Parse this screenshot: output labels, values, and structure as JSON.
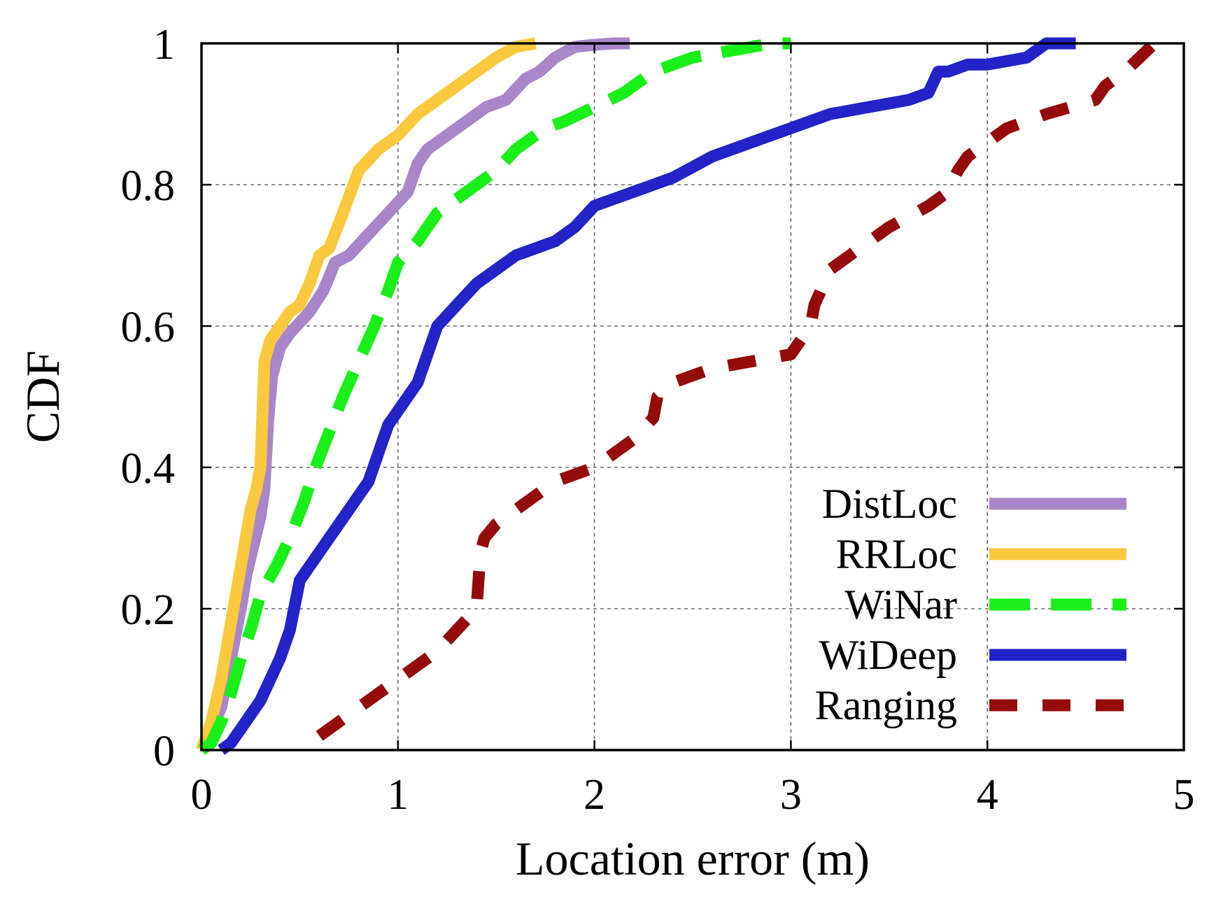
{
  "chart_data": {
    "type": "line",
    "title": "",
    "xlabel": "Location error (m)",
    "ylabel": "CDF",
    "xlim": [
      0,
      5
    ],
    "ylim": [
      0,
      1
    ],
    "xticks": [
      0,
      1,
      2,
      3,
      4,
      5
    ],
    "yticks": [
      0,
      0.2,
      0.4,
      0.6,
      0.8,
      1
    ],
    "xtick_labels": [
      "0",
      "1",
      "2",
      "3",
      "4",
      "5"
    ],
    "ytick_labels": [
      "0",
      "0.2",
      "0.4",
      "0.6",
      "0.8",
      "1"
    ],
    "grid": true,
    "legend_position": "bottom-right",
    "series": [
      {
        "name": "DistLoc",
        "color": "#a986c9",
        "style": "solid",
        "x": [
          0.0,
          0.1,
          0.15,
          0.2,
          0.23,
          0.3,
          0.32,
          0.34,
          0.36,
          0.4,
          0.45,
          0.55,
          0.62,
          0.68,
          0.75,
          0.85,
          0.95,
          1.05,
          1.1,
          1.15,
          1.25,
          1.35,
          1.45,
          1.55,
          1.65,
          1.72,
          1.8,
          1.9,
          2.0,
          2.1,
          2.18
        ],
        "y": [
          0.0,
          0.06,
          0.13,
          0.2,
          0.25,
          0.33,
          0.37,
          0.47,
          0.53,
          0.57,
          0.59,
          0.62,
          0.65,
          0.69,
          0.7,
          0.73,
          0.76,
          0.79,
          0.83,
          0.85,
          0.87,
          0.89,
          0.91,
          0.92,
          0.95,
          0.96,
          0.98,
          0.995,
          0.998,
          1.0,
          1.0
        ]
      },
      {
        "name": "RRLoc",
        "color": "#fbc93d",
        "style": "solid",
        "x": [
          0.0,
          0.05,
          0.1,
          0.15,
          0.2,
          0.25,
          0.28,
          0.3,
          0.32,
          0.35,
          0.4,
          0.45,
          0.5,
          0.55,
          0.6,
          0.65,
          0.72,
          0.8,
          0.9,
          1.0,
          1.1,
          1.2,
          1.3,
          1.4,
          1.5,
          1.6,
          1.7
        ],
        "y": [
          0.0,
          0.04,
          0.1,
          0.18,
          0.26,
          0.34,
          0.37,
          0.4,
          0.55,
          0.58,
          0.6,
          0.62,
          0.63,
          0.66,
          0.7,
          0.71,
          0.76,
          0.82,
          0.85,
          0.87,
          0.9,
          0.92,
          0.94,
          0.96,
          0.98,
          0.995,
          1.0
        ]
      },
      {
        "name": "WiNar",
        "color": "#19f019",
        "style": "dashed",
        "x": [
          0.0,
          0.05,
          0.1,
          0.15,
          0.2,
          0.25,
          0.3,
          0.38,
          0.45,
          0.52,
          0.58,
          0.65,
          0.72,
          0.8,
          0.88,
          0.95,
          1.0,
          1.1,
          1.2,
          1.3,
          1.4,
          1.5,
          1.6,
          1.75,
          1.85,
          2.0,
          2.15,
          2.3,
          2.5,
          2.7,
          2.9,
          3.0
        ],
        "y": [
          0.0,
          0.01,
          0.04,
          0.08,
          0.13,
          0.17,
          0.22,
          0.26,
          0.3,
          0.35,
          0.4,
          0.45,
          0.5,
          0.55,
          0.6,
          0.65,
          0.69,
          0.72,
          0.76,
          0.78,
          0.8,
          0.82,
          0.85,
          0.88,
          0.89,
          0.91,
          0.93,
          0.96,
          0.98,
          0.99,
          1.0,
          1.0
        ]
      },
      {
        "name": "WiDeep",
        "color": "#2323c8",
        "style": "solid",
        "x": [
          0.1,
          0.15,
          0.2,
          0.25,
          0.3,
          0.35,
          0.4,
          0.45,
          0.5,
          0.55,
          0.6,
          0.65,
          0.7,
          0.75,
          0.8,
          0.85,
          0.9,
          0.95,
          1.0,
          1.1,
          1.2,
          1.3,
          1.4,
          1.5,
          1.6,
          1.7,
          1.8,
          1.9,
          2.0,
          2.2,
          2.4,
          2.6,
          2.8,
          3.0,
          3.2,
          3.4,
          3.6,
          3.7,
          3.75,
          3.8,
          3.9,
          4.0,
          4.2,
          4.3,
          4.45
        ],
        "y": [
          0.0,
          0.01,
          0.03,
          0.05,
          0.07,
          0.1,
          0.13,
          0.17,
          0.24,
          0.26,
          0.28,
          0.3,
          0.32,
          0.34,
          0.36,
          0.38,
          0.42,
          0.46,
          0.48,
          0.52,
          0.6,
          0.63,
          0.66,
          0.68,
          0.7,
          0.71,
          0.72,
          0.74,
          0.77,
          0.79,
          0.81,
          0.84,
          0.86,
          0.88,
          0.9,
          0.91,
          0.92,
          0.93,
          0.96,
          0.96,
          0.97,
          0.97,
          0.98,
          1.0,
          1.0
        ]
      },
      {
        "name": "Ranging",
        "color": "#950a0a",
        "style": "dashed",
        "x": [
          0.6,
          0.7,
          0.8,
          0.9,
          1.0,
          1.1,
          1.2,
          1.3,
          1.4,
          1.42,
          1.44,
          1.5,
          1.6,
          1.7,
          1.8,
          1.9,
          2.0,
          2.1,
          2.2,
          2.3,
          2.32,
          2.4,
          2.6,
          2.8,
          3.0,
          3.1,
          3.12,
          3.2,
          3.3,
          3.5,
          3.7,
          3.8,
          3.85,
          3.9,
          4.0,
          4.1,
          4.3,
          4.55,
          4.6,
          4.7,
          4.85
        ],
        "y": [
          0.02,
          0.04,
          0.06,
          0.08,
          0.1,
          0.12,
          0.14,
          0.17,
          0.2,
          0.28,
          0.3,
          0.32,
          0.34,
          0.36,
          0.38,
          0.39,
          0.4,
          0.42,
          0.44,
          0.47,
          0.5,
          0.52,
          0.54,
          0.55,
          0.56,
          0.6,
          0.63,
          0.68,
          0.7,
          0.74,
          0.77,
          0.79,
          0.82,
          0.84,
          0.86,
          0.88,
          0.9,
          0.92,
          0.94,
          0.96,
          1.0
        ]
      }
    ]
  }
}
